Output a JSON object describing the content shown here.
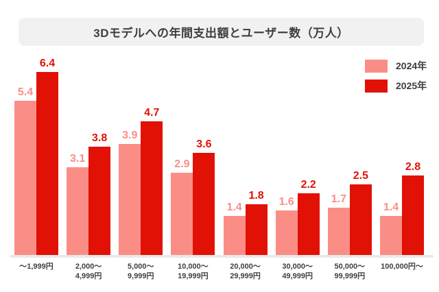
{
  "title": "3Dモデルへの年間支出額とユーザー数（万人）",
  "legend": {
    "items": [
      {
        "label": "2024年",
        "color": "#fa8e86"
      },
      {
        "label": "2025年",
        "color": "#e11105"
      }
    ]
  },
  "chart_data": {
    "type": "bar",
    "title": "3Dモデルへの年間支出額とユーザー数（万人）",
    "categories": [
      "～1,999円",
      "2,000～\n4,999円",
      "5,000～\n9,999円",
      "10,000～\n19,999円",
      "20,000～\n29,999円",
      "30,000～\n49,999円",
      "50,000～\n99,999円",
      "100,000円～"
    ],
    "series": [
      {
        "name": "2024年",
        "color": "#fa8e86",
        "values": [
          5.4,
          3.1,
          3.9,
          2.9,
          1.4,
          1.6,
          1.7,
          1.4
        ]
      },
      {
        "name": "2025年",
        "color": "#e11105",
        "values": [
          6.4,
          3.8,
          4.7,
          3.6,
          1.8,
          2.2,
          2.5,
          2.8
        ]
      }
    ],
    "xlabel": "",
    "ylabel": "",
    "ylim": [
      0,
      6.6
    ],
    "grid": false,
    "legend_position": "top-right",
    "value_labels": true
  },
  "colors": {
    "background": "#ffffff",
    "title_banner": "#f1f1f1",
    "title_text": "#3e3e3e",
    "axis_line": "#e9e9e9",
    "axis_label_text": "#3f3f3f"
  }
}
